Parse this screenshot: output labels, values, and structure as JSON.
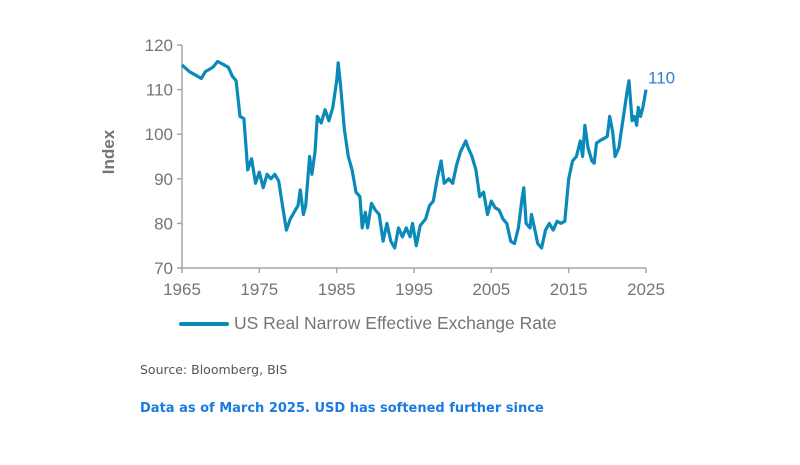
{
  "chart_data": {
    "type": "line",
    "title": "",
    "xlabel": "",
    "ylabel": "Index",
    "xlim": [
      1965,
      2025
    ],
    "ylim": [
      70,
      120
    ],
    "xticks": [
      1965,
      1975,
      1985,
      1995,
      2005,
      2015,
      2025
    ],
    "yticks": [
      70,
      80,
      90,
      100,
      110,
      120
    ],
    "grid": false,
    "legend_position": "bottom",
    "line_color": "#0a8ab8",
    "end_label": "110",
    "end_label_color": "#2a7fd4",
    "series": [
      {
        "name": "US Real Narrow Effective Exchange Rate",
        "x": [
          1965,
          1966,
          1967,
          1967.5,
          1968,
          1969,
          1969.6,
          1970.5,
          1971,
          1971.5,
          1972,
          1972.5,
          1973,
          1973.5,
          1974,
          1974.5,
          1975,
          1975.5,
          1976,
          1976.5,
          1977,
          1977.5,
          1978,
          1978.5,
          1979,
          1979.5,
          1980,
          1980.3,
          1980.7,
          1981,
          1981.5,
          1981.8,
          1982.2,
          1982.5,
          1983,
          1983.5,
          1984,
          1984.5,
          1985,
          1985.2,
          1985.5,
          1986,
          1986.5,
          1987,
          1987.5,
          1988,
          1988.3,
          1988.7,
          1989,
          1989.5,
          1990,
          1990.5,
          1991,
          1991.5,
          1992,
          1992.5,
          1993,
          1993.5,
          1994,
          1994.5,
          1994.8,
          1995.3,
          1995.8,
          1996.5,
          1997,
          1997.5,
          1998,
          1998.5,
          1998.9,
          1999.5,
          2000,
          2000.5,
          2001,
          2001.7,
          2002,
          2002.5,
          2003,
          2003.5,
          2004,
          2004.5,
          2005,
          2005.5,
          2006,
          2006.5,
          2007,
          2007.5,
          2008,
          2008.5,
          2009,
          2009.2,
          2009.5,
          2010,
          2010.2,
          2010.7,
          2011,
          2011.5,
          2012,
          2012.5,
          2013,
          2013.5,
          2014,
          2014.5,
          2015,
          2015.5,
          2016,
          2016.5,
          2016.8,
          2017.1,
          2017.5,
          2018,
          2018.3,
          2018.6,
          2019,
          2019.5,
          2020,
          2020.3,
          2020.7,
          2021,
          2021.5,
          2022,
          2022.6,
          2022.8,
          2023.2,
          2023.5,
          2023.8,
          2024,
          2024.3,
          2024.6,
          2025
        ],
        "values": [
          115.5,
          114,
          113,
          112.5,
          114,
          115,
          116.3,
          115.5,
          115,
          113,
          112,
          104,
          103.5,
          92,
          94.5,
          89,
          91.5,
          88,
          91,
          90,
          91,
          89.5,
          84,
          78.5,
          81,
          82.5,
          84,
          87.5,
          82,
          84,
          95,
          91,
          96,
          104,
          102.5,
          105.5,
          103,
          106,
          112,
          116,
          111,
          101,
          95,
          92,
          87,
          86,
          79,
          82.5,
          79,
          84.5,
          83,
          82,
          76,
          80,
          76,
          74.5,
          79,
          77,
          79,
          77,
          80,
          75,
          79.5,
          81,
          84,
          85,
          90,
          94,
          89,
          90,
          89,
          93,
          96,
          98.5,
          97,
          95,
          92,
          86,
          87,
          82,
          85,
          83.5,
          83,
          81,
          80,
          76,
          75.5,
          79,
          86,
          88,
          80,
          79,
          82,
          78,
          75.5,
          74.5,
          78.5,
          80,
          78.5,
          80.5,
          80,
          80.5,
          90,
          94,
          95,
          98.5,
          95,
          102,
          97,
          94,
          93.5,
          98,
          98.5,
          99,
          99.5,
          104,
          100.5,
          95,
          97,
          103,
          110,
          112,
          103,
          104,
          102,
          106,
          104,
          106,
          110
        ]
      }
    ]
  },
  "source": "Source: Bloomberg, BIS",
  "note": "Data as of March 2025. USD has softened further since"
}
